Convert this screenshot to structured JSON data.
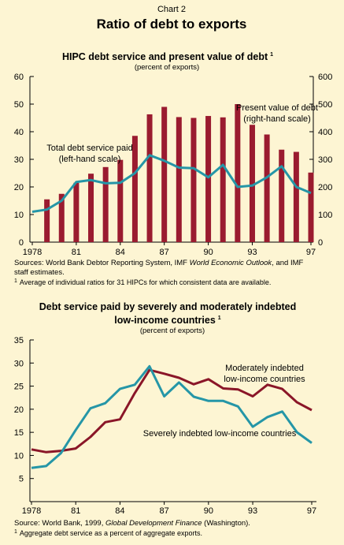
{
  "header": {
    "chart_number": "Chart 2",
    "title": "Ratio of debt to exports"
  },
  "colors": {
    "background": "#fdf5d3",
    "bar": "#9a1b2f",
    "line_blue": "#2596a7",
    "line_red": "#8a1628"
  },
  "chart_data": [
    {
      "type": "bar",
      "title": "HIPC debt service and present value of debt",
      "title_footnote": "1",
      "subtitle": "(percent of exports)",
      "x_tick_labels": [
        "1978",
        "81",
        "84",
        "87",
        "90",
        "93",
        "97"
      ],
      "x_years": [
        1979,
        1980,
        1981,
        1982,
        1983,
        1984,
        1985,
        1986,
        1987,
        1988,
        1989,
        1990,
        1991,
        1992,
        1993,
        1994,
        1995,
        1996,
        1997
      ],
      "y_left": {
        "ylim": [
          0,
          60
        ],
        "ticks": [
          0,
          10,
          20,
          30,
          40,
          50,
          60
        ]
      },
      "y_right": {
        "ylim": [
          0,
          600
        ],
        "ticks": [
          0,
          100,
          200,
          300,
          400,
          500,
          600
        ]
      },
      "series": [
        {
          "name": "Present value of debt",
          "axis": "right",
          "type": "bar",
          "annotation": [
            "Present value of debt",
            "(right-hand scale)"
          ],
          "values": [
            155,
            175,
            215,
            248,
            272,
            298,
            385,
            463,
            490,
            453,
            450,
            457,
            452,
            500,
            425,
            390,
            335,
            327,
            252
          ]
        },
        {
          "name": "Total debt service paid",
          "axis": "left",
          "type": "line",
          "annotation": [
            "Total debt service paid",
            "(left-hand scale)"
          ],
          "x": [
            1978,
            1979,
            1980,
            1981,
            1982,
            1983,
            1984,
            1985,
            1986,
            1987,
            1988,
            1989,
            1990,
            1991,
            1992,
            1993,
            1994,
            1995,
            1996,
            1997
          ],
          "values": [
            11,
            11.8,
            15,
            21.8,
            22.5,
            21.3,
            21.5,
            25,
            31.5,
            29.5,
            27,
            26.8,
            23.5,
            28,
            20,
            20.5,
            23.5,
            27.5,
            20,
            17.8
          ]
        }
      ],
      "source": {
        "prefix": "Sources: World Bank Debtor Reporting System, IMF ",
        "italic": "World Economic Outlook",
        "suffix": ", and IMF staff estimates."
      },
      "footnote": {
        "marker": "1",
        "text": "Average of individual ratios for 31 HIPCs for which consistent data are available."
      }
    },
    {
      "type": "line",
      "title": "Debt service paid by severely and moderately indebted low-income countries",
      "title_lines": [
        "Debt service paid by severely and moderately indebted",
        "low-income countries"
      ],
      "title_footnote": "1",
      "subtitle": "(percent of exports)",
      "x_tick_labels": [
        "1978",
        "81",
        "84",
        "87",
        "90",
        "93",
        "97"
      ],
      "ylim": [
        5,
        35
      ],
      "y_ticks": [
        5,
        10,
        15,
        20,
        25,
        30,
        35
      ],
      "series": [
        {
          "name": "Moderately indebted low-income countries",
          "annotation": [
            "Moderately indebted",
            "low-income countries"
          ],
          "x": [
            1978,
            1979,
            1980,
            1981,
            1982,
            1983,
            1984,
            1985,
            1986,
            1987,
            1988,
            1989,
            1990,
            1991,
            1992,
            1993,
            1994,
            1995,
            1996,
            1997
          ],
          "values": [
            11.3,
            10.7,
            11,
            11.5,
            14,
            17.2,
            17.8,
            23.5,
            28.5,
            27.7,
            26.8,
            25.4,
            26.5,
            24.5,
            24.3,
            22.8,
            25.3,
            24.4,
            21.5,
            19.8
          ]
        },
        {
          "name": "Severely indebted low-income countries",
          "annotation": [
            "Severely indebted low-income countries"
          ],
          "x": [
            1978,
            1979,
            1980,
            1981,
            1982,
            1983,
            1984,
            1985,
            1986,
            1987,
            1988,
            1989,
            1990,
            1991,
            1992,
            1993,
            1994,
            1995,
            1996,
            1997
          ],
          "values": [
            7.3,
            7.7,
            10.5,
            15.5,
            20.2,
            21.3,
            24.4,
            25.3,
            29.3,
            22.8,
            25.8,
            22.7,
            21.8,
            21.8,
            20.6,
            16.2,
            18.3,
            19.5,
            15,
            12.7
          ]
        }
      ],
      "source": {
        "prefix": "Source: World Bank, 1999, ",
        "italic": "Global Development Finance",
        "suffix": " (Washington)."
      },
      "footnote": {
        "marker": "1",
        "text": "Aggregate debt service as a percent of aggregate exports."
      }
    }
  ]
}
